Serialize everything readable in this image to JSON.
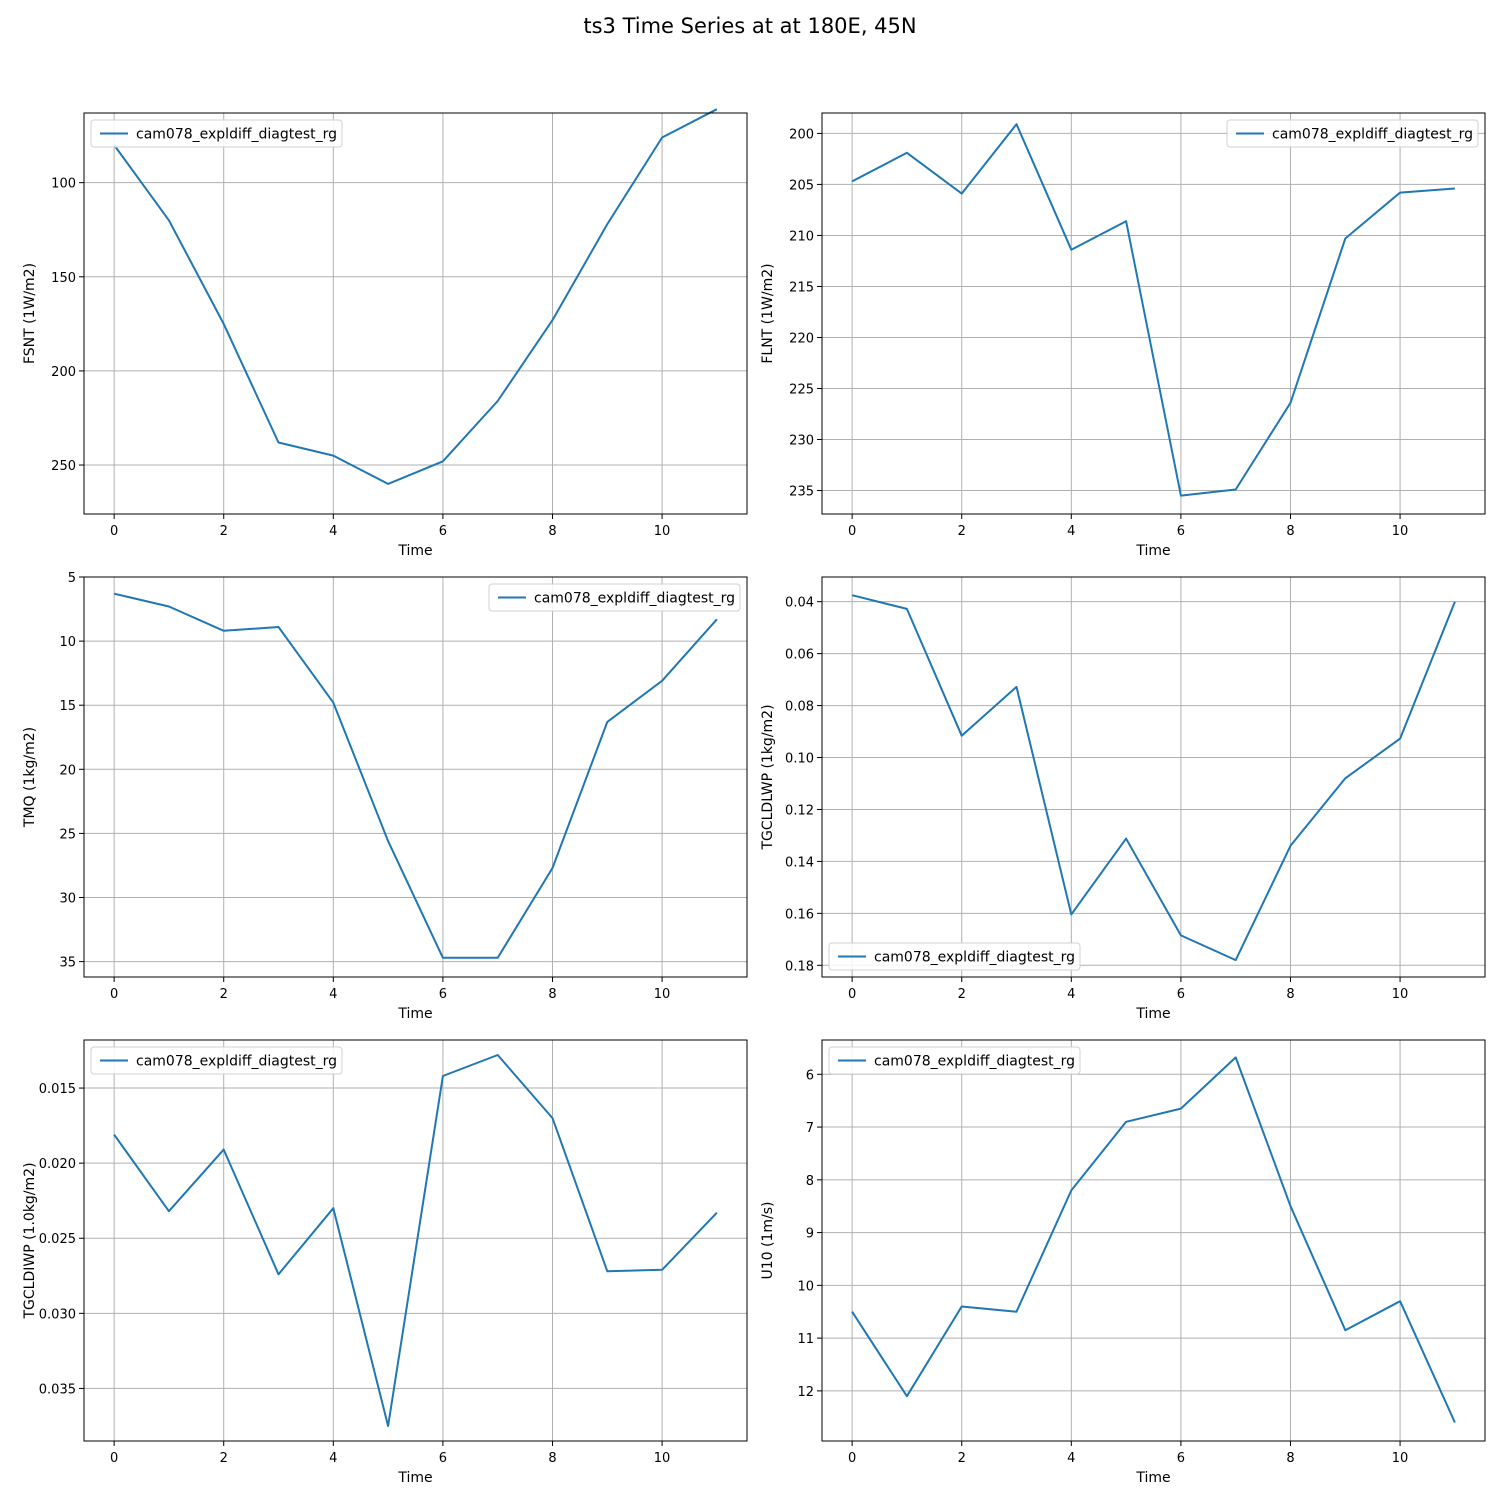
{
  "figure": {
    "title": "ts3 Time Series at at 180E, 45N",
    "line_color": "#1f77b4",
    "grid_color": "#b0b0b0"
  },
  "chart_data": [
    {
      "type": "line",
      "xlabel": "Time",
      "ylabel": "FSNT (1W/m2)",
      "x": [
        0,
        1,
        2,
        3,
        4,
        5,
        6,
        7,
        8,
        9,
        10,
        11
      ],
      "xlim": [
        -0.55,
        11.55
      ],
      "xticks": [
        "0",
        "2",
        "4",
        "6",
        "8",
        "10"
      ],
      "ylim": [
        63,
        276
      ],
      "y_inverted": true,
      "yticks": [
        "100",
        "150",
        "200",
        "250"
      ],
      "legend_loc": "upper left",
      "grid": true,
      "series": [
        {
          "name": "cam078_expldiff_diagtest_rg",
          "values": [
            80,
            120,
            175,
            238,
            245,
            260,
            248,
            216,
            173,
            122,
            76,
            61
          ]
        }
      ]
    },
    {
      "type": "line",
      "xlabel": "Time",
      "ylabel": "FLNT (1W/m2)",
      "x": [
        0,
        1,
        2,
        3,
        4,
        5,
        6,
        7,
        8,
        9,
        10,
        11
      ],
      "xlim": [
        -0.55,
        11.55
      ],
      "xticks": [
        "0",
        "2",
        "4",
        "6",
        "8",
        "10"
      ],
      "ylim": [
        198.0,
        237.3
      ],
      "y_inverted": true,
      "yticks": [
        "200",
        "205",
        "210",
        "215",
        "220",
        "225",
        "230",
        "235"
      ],
      "legend_loc": "upper right",
      "grid": true,
      "series": [
        {
          "name": "cam078_expldiff_diagtest_rg",
          "values": [
            204.7,
            201.9,
            205.9,
            199.1,
            211.4,
            208.6,
            235.5,
            234.9,
            226.4,
            210.3,
            205.8,
            205.4
          ]
        }
      ]
    },
    {
      "type": "line",
      "xlabel": "Time",
      "ylabel": "TMQ (1kg/m2)",
      "x": [
        0,
        1,
        2,
        3,
        4,
        5,
        6,
        7,
        8,
        9,
        10,
        11
      ],
      "xlim": [
        -0.55,
        11.55
      ],
      "xticks": [
        "0",
        "2",
        "4",
        "6",
        "8",
        "10"
      ],
      "ylim": [
        5.0,
        36.2
      ],
      "y_inverted": true,
      "yticks": [
        "5",
        "10",
        "15",
        "20",
        "25",
        "30",
        "35"
      ],
      "legend_loc": "upper right",
      "grid": true,
      "series": [
        {
          "name": "cam078_expldiff_diagtest_rg",
          "values": [
            6.3,
            7.3,
            9.2,
            8.9,
            14.8,
            25.6,
            34.7,
            34.7,
            27.7,
            16.3,
            13.1,
            8.3
          ]
        }
      ]
    },
    {
      "type": "line",
      "xlabel": "Time",
      "ylabel": "TGCLDLWP (1kg/m2)",
      "x": [
        0,
        1,
        2,
        3,
        4,
        5,
        6,
        7,
        8,
        9,
        10,
        11
      ],
      "xlim": [
        -0.55,
        11.55
      ],
      "xticks": [
        "0",
        "2",
        "4",
        "6",
        "8",
        "10"
      ],
      "ylim": [
        0.0305,
        0.1845
      ],
      "y_inverted": true,
      "yticks": [
        "0.04",
        "0.06",
        "0.08",
        "0.10",
        "0.12",
        "0.14",
        "0.16",
        "0.18"
      ],
      "legend_loc": "lower left",
      "grid": true,
      "series": [
        {
          "name": "cam078_expldiff_diagtest_rg",
          "values": [
            0.0375,
            0.0428,
            0.0916,
            0.0728,
            0.1604,
            0.1312,
            0.1685,
            0.178,
            0.134,
            0.108,
            0.0927,
            0.04
          ]
        }
      ]
    },
    {
      "type": "line",
      "xlabel": "Time",
      "ylabel": "TGCLDIWP (1.0kg/m2)",
      "x": [
        0,
        1,
        2,
        3,
        4,
        5,
        6,
        7,
        8,
        9,
        10,
        11
      ],
      "xlim": [
        -0.55,
        11.55
      ],
      "xticks": [
        "0",
        "2",
        "4",
        "6",
        "8",
        "10"
      ],
      "ylim": [
        0.0118,
        0.0385
      ],
      "y_inverted": true,
      "yticks": [
        "0.015",
        "0.020",
        "0.025",
        "0.030",
        "0.035"
      ],
      "legend_loc": "upper left",
      "grid": true,
      "series": [
        {
          "name": "cam078_expldiff_diagtest_rg",
          "values": [
            0.0181,
            0.0232,
            0.0191,
            0.0274,
            0.023,
            0.0375,
            0.0142,
            0.0128,
            0.017,
            0.0272,
            0.0271,
            0.0233
          ]
        }
      ]
    },
    {
      "type": "line",
      "xlabel": "Time",
      "ylabel": "U10 (1m/s)",
      "x": [
        0,
        1,
        2,
        3,
        4,
        5,
        6,
        7,
        8,
        9,
        10,
        11
      ],
      "xlim": [
        -0.55,
        11.55
      ],
      "xticks": [
        "0",
        "2",
        "4",
        "6",
        "8",
        "10"
      ],
      "ylim": [
        5.35,
        12.95
      ],
      "y_inverted": true,
      "yticks": [
        "6",
        "7",
        "8",
        "9",
        "10",
        "11",
        "12"
      ],
      "legend_loc": "upper left",
      "grid": true,
      "series": [
        {
          "name": "cam078_expldiff_diagtest_rg",
          "values": [
            10.5,
            12.1,
            10.4,
            10.5,
            8.2,
            6.9,
            6.65,
            5.68,
            8.5,
            10.85,
            10.3,
            12.6
          ]
        }
      ]
    }
  ]
}
